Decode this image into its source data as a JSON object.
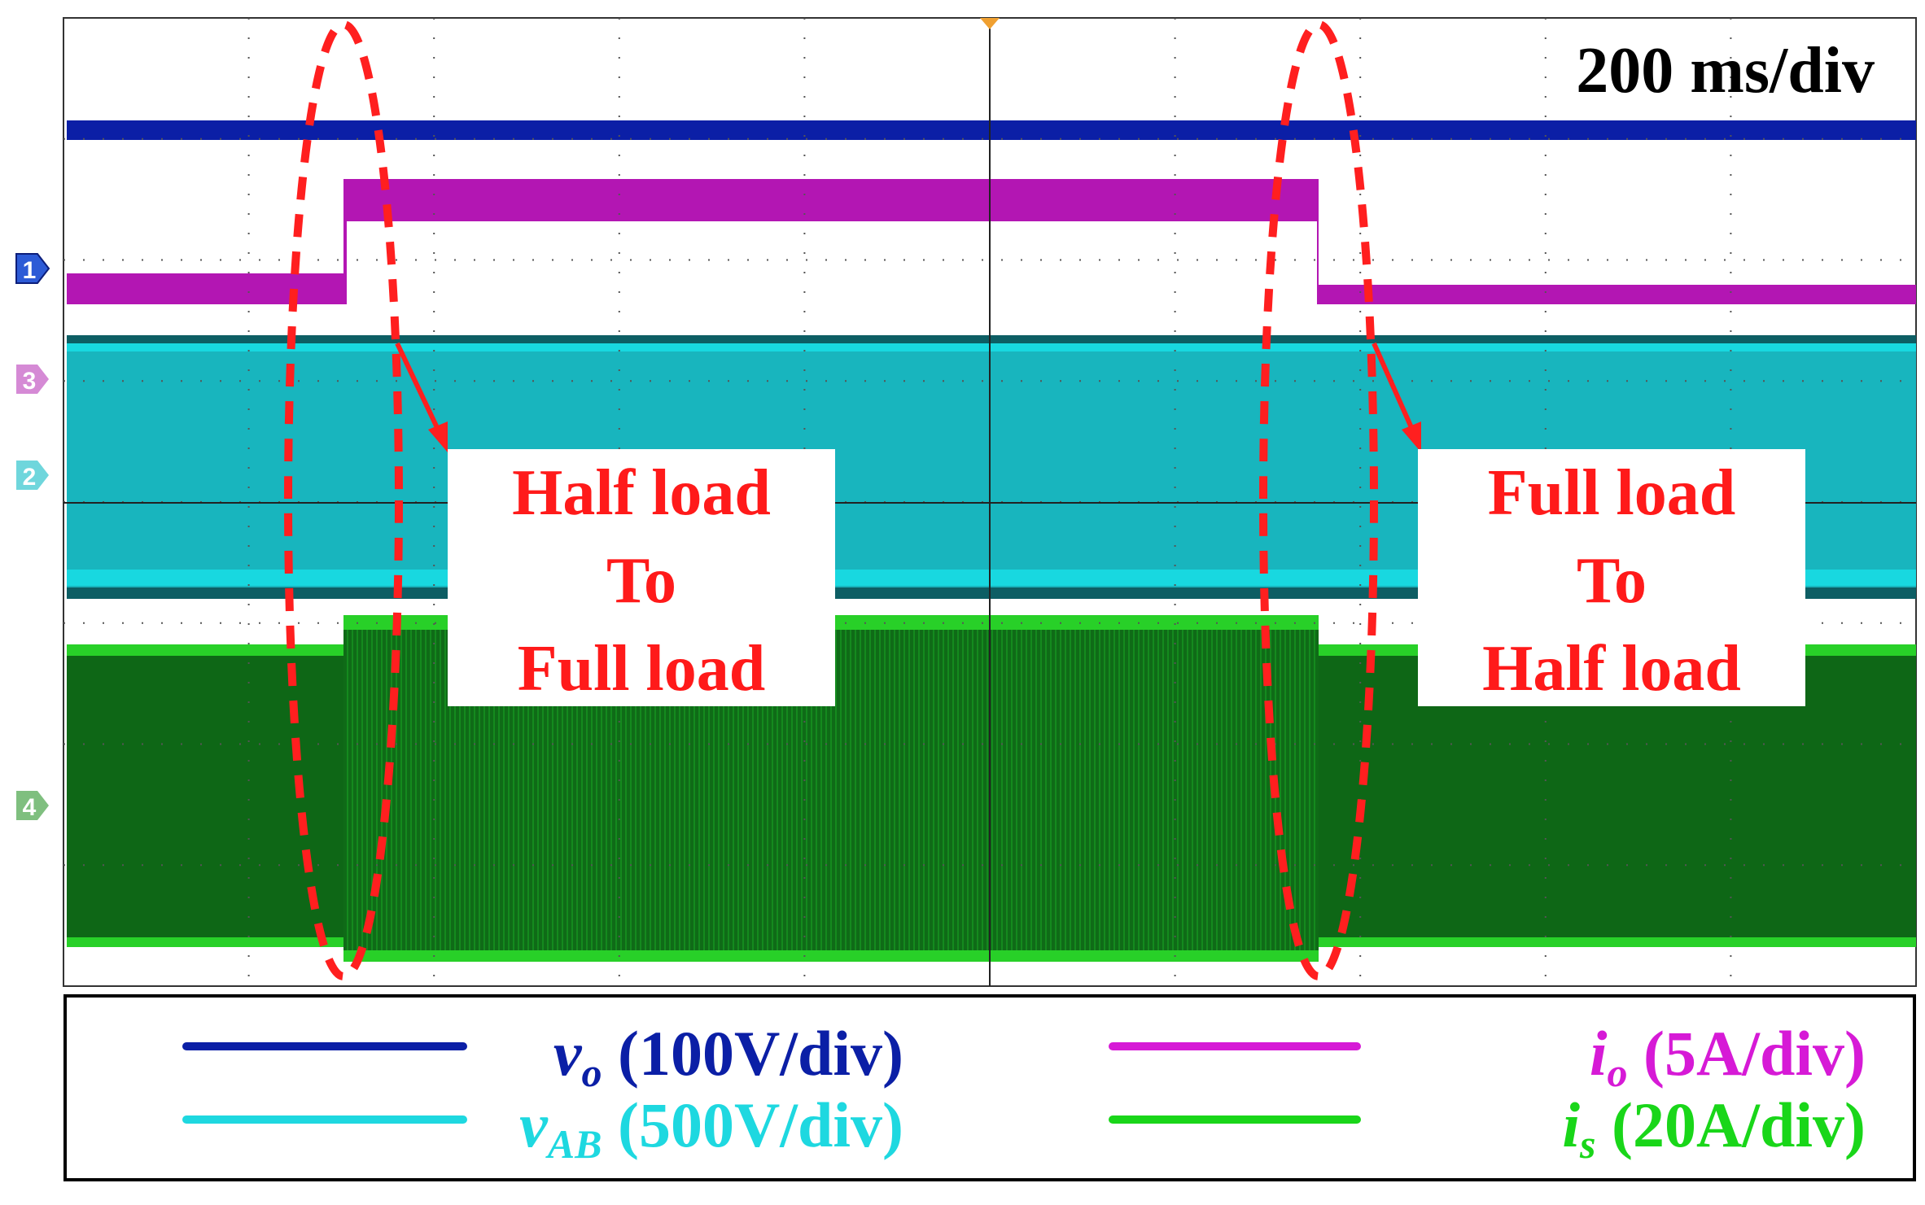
{
  "chart_data": {
    "type": "line",
    "timebase": "200 ms/div",
    "grid": true,
    "series": [
      {
        "name": "v_o (100V/div)",
        "symbol": "v",
        "sub": "o",
        "scale": "(100V/div)",
        "color": "#0b1fa6",
        "values": [
          {
            "x": 0,
            "y": 1
          },
          {
            "x": 10,
            "y": 1
          }
        ]
      },
      {
        "name": "i_o (5A/div)",
        "symbol": "i",
        "sub": "o",
        "scale": "(5A/div)",
        "color": "#d61ad6",
        "values": [
          {
            "x": 0,
            "y": 0.5
          },
          {
            "x": 1.5,
            "y": 0.5
          },
          {
            "x": 1.5,
            "y": 1
          },
          {
            "x": 6.8,
            "y": 1
          },
          {
            "x": 6.8,
            "y": 0.5
          },
          {
            "x": 10,
            "y": 0.5
          }
        ]
      },
      {
        "name": "v_AB (500V/div)",
        "symbol": "v",
        "sub": "AB",
        "scale": "(500V/div)",
        "color": "#1ed8e0",
        "values": [
          {
            "x": 0,
            "y": 1
          },
          {
            "x": 10,
            "y": 1
          }
        ]
      },
      {
        "name": "i_s (20A/div)",
        "symbol": "i",
        "sub": "s",
        "scale": "(20A/div)",
        "color": "#19d619",
        "values": [
          {
            "x": 0,
            "y": 0.5
          },
          {
            "x": 1.5,
            "y": 0.5
          },
          {
            "x": 1.5,
            "y": 1
          },
          {
            "x": 6.8,
            "y": 1
          },
          {
            "x": 6.8,
            "y": 0.5
          },
          {
            "x": 10,
            "y": 0.5
          }
        ]
      }
    ],
    "channel_markers": [
      "1",
      "3",
      "2",
      "4"
    ],
    "annotations": [
      {
        "lines": [
          "Half load",
          "To",
          "Full load"
        ]
      },
      {
        "lines": [
          "Full load",
          "To",
          "Half load"
        ]
      }
    ]
  }
}
